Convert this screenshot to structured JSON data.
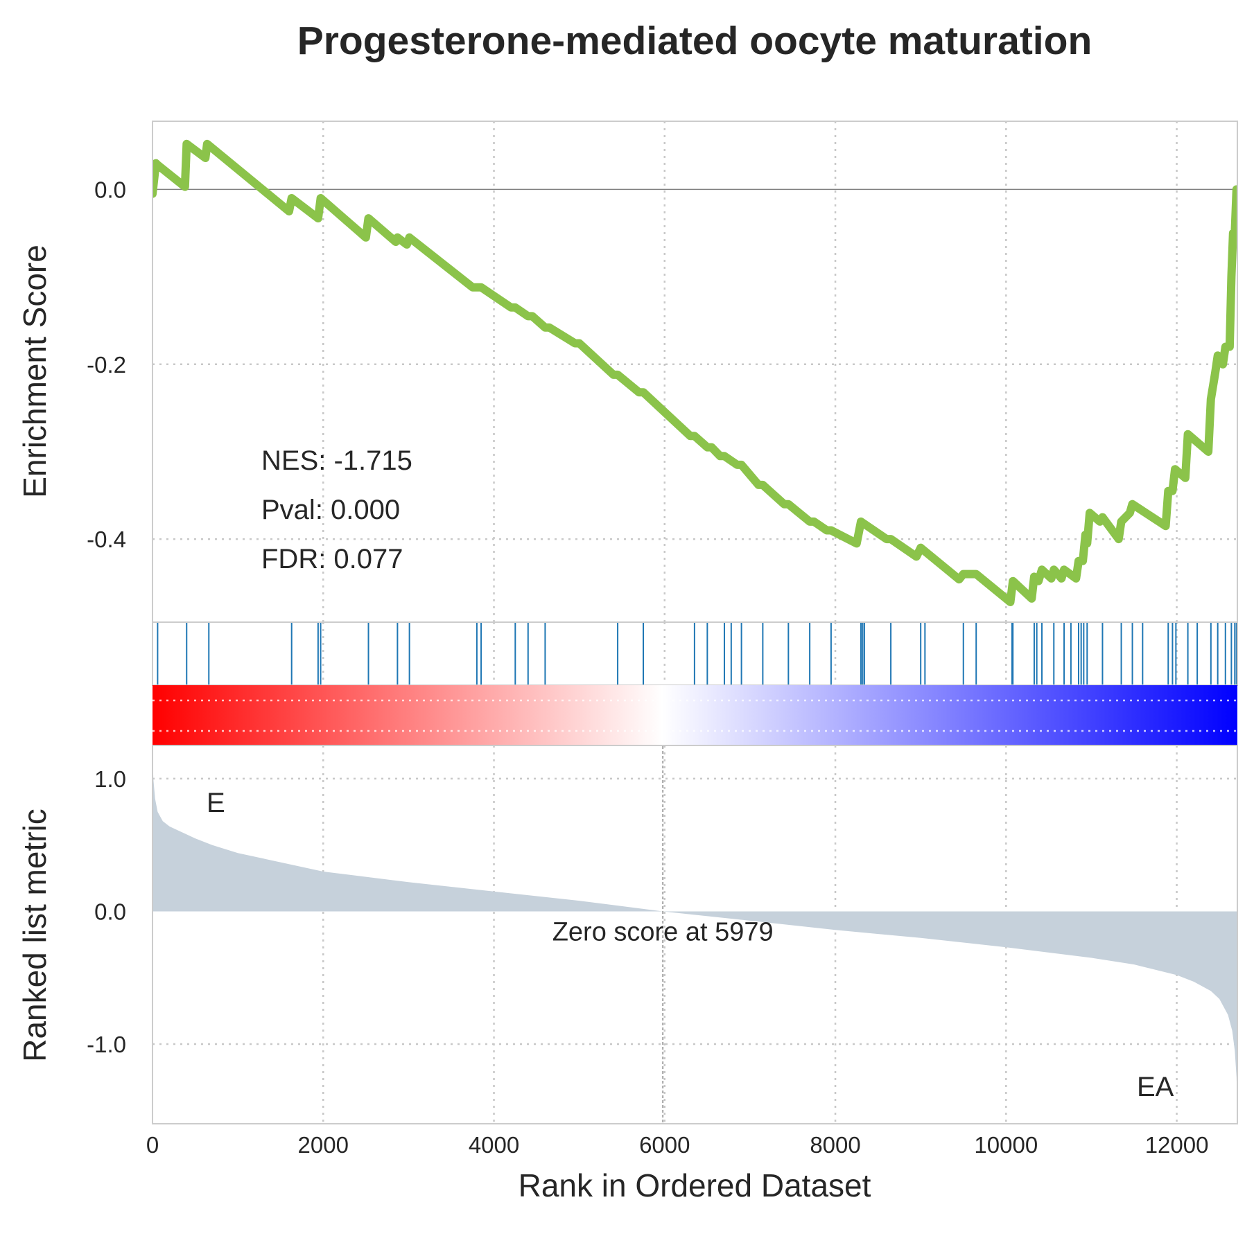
{
  "chart_data": {
    "type": "line",
    "title": "Progesterone-mediated oocyte maturation",
    "xlabel": "Rank in Ordered Dataset",
    "x_ticks": [
      0,
      2000,
      4000,
      6000,
      8000,
      10000,
      12000
    ],
    "xlim": [
      0,
      12710
    ],
    "enrichment": {
      "ylabel": "Enrichment Score",
      "ylim": [
        -0.495,
        0.078
      ],
      "y_ticks": [
        0.0,
        -0.2,
        -0.4
      ],
      "y_tick_labels": [
        "0.0",
        "-0.2",
        "-0.4"
      ],
      "line_color": "#8bc34a",
      "x": [
        0,
        40,
        60,
        380,
        400,
        620,
        640,
        1600,
        1630,
        1940,
        1970,
        2500,
        2530,
        2850,
        2870,
        2980,
        3010,
        3750,
        3800,
        3850,
        4200,
        4250,
        4400,
        4450,
        4600,
        4650,
        4950,
        5000,
        5400,
        5450,
        5700,
        5750,
        6300,
        6350,
        6500,
        6550,
        6650,
        6700,
        6850,
        6900,
        7100,
        7150,
        7400,
        7450,
        7700,
        7750,
        7900,
        7950,
        8250,
        8300,
        8600,
        8650,
        8950,
        9000,
        9450,
        9500,
        9600,
        9650,
        10050,
        10080,
        10300,
        10330,
        10380,
        10420,
        10530,
        10560,
        10650,
        10680,
        10820,
        10850,
        10900,
        10930,
        10950,
        10980,
        11100,
        11130,
        11320,
        11350,
        11450,
        11480,
        11870,
        11900,
        11950,
        11980,
        12100,
        12130,
        12370,
        12400,
        12450,
        12480,
        12540,
        12570,
        12620,
        12640,
        12660,
        12680,
        12700
      ],
      "y": [
        -0.005,
        0.03,
        0.028,
        0.003,
        0.052,
        0.036,
        0.052,
        -0.025,
        -0.01,
        -0.033,
        -0.01,
        -0.055,
        -0.033,
        -0.06,
        -0.055,
        -0.063,
        -0.055,
        -0.112,
        -0.112,
        -0.112,
        -0.135,
        -0.135,
        -0.145,
        -0.145,
        -0.158,
        -0.158,
        -0.176,
        -0.176,
        -0.212,
        -0.212,
        -0.232,
        -0.232,
        -0.282,
        -0.282,
        -0.295,
        -0.295,
        -0.305,
        -0.305,
        -0.315,
        -0.315,
        -0.338,
        -0.338,
        -0.36,
        -0.36,
        -0.38,
        -0.38,
        -0.39,
        -0.39,
        -0.405,
        -0.38,
        -0.4,
        -0.4,
        -0.42,
        -0.41,
        -0.446,
        -0.44,
        -0.44,
        -0.44,
        -0.472,
        -0.448,
        -0.468,
        -0.443,
        -0.448,
        -0.435,
        -0.445,
        -0.435,
        -0.445,
        -0.435,
        -0.445,
        -0.425,
        -0.425,
        -0.395,
        -0.405,
        -0.37,
        -0.38,
        -0.375,
        -0.4,
        -0.38,
        -0.37,
        -0.36,
        -0.385,
        -0.345,
        -0.345,
        -0.32,
        -0.33,
        -0.28,
        -0.3,
        -0.24,
        -0.21,
        -0.19,
        -0.2,
        -0.18,
        -0.18,
        -0.1,
        -0.05,
        -0.05,
        0.0
      ],
      "annotations": [
        "NES: -1.715",
        "Pval: 0.000",
        "FDR: 0.077"
      ]
    },
    "hits": {
      "color": "#1f77b4",
      "ranks": [
        60,
        400,
        660,
        1630,
        1940,
        1970,
        2530,
        2870,
        3010,
        3800,
        3850,
        4250,
        4400,
        4600,
        5450,
        5750,
        6350,
        6500,
        6700,
        6780,
        6900,
        7150,
        7450,
        7700,
        7950,
        8300,
        8320,
        8340,
        8650,
        9000,
        9050,
        9500,
        9650,
        10070,
        10080,
        10330,
        10360,
        10420,
        10560,
        10680,
        10760,
        10850,
        10880,
        10910,
        10950,
        11130,
        11350,
        11480,
        11600,
        11900,
        11950,
        11990,
        12130,
        12240,
        12400,
        12480,
        12570,
        12640,
        12680,
        12700
      ]
    },
    "ranked_metric": {
      "ylabel": "Ranked list metric",
      "ylim": [
        -1.6,
        1.25
      ],
      "y_ticks": [
        1.0,
        0.0,
        -1.0
      ],
      "y_tick_labels": [
        "1.0",
        "0.0",
        "-1.0"
      ],
      "fill_color": "#c6d1db",
      "x": [
        0,
        10,
        30,
        60,
        120,
        200,
        300,
        400,
        500,
        700,
        1000,
        1500,
        2000,
        3000,
        4000,
        5000,
        5979,
        7000,
        8000,
        9000,
        10000,
        11000,
        11500,
        12000,
        12200,
        12400,
        12500,
        12600,
        12650,
        12680,
        12700,
        12710
      ],
      "y": [
        1.2,
        1.0,
        0.85,
        0.75,
        0.68,
        0.64,
        0.61,
        0.58,
        0.55,
        0.5,
        0.44,
        0.37,
        0.3,
        0.22,
        0.15,
        0.08,
        0.0,
        -0.07,
        -0.14,
        -0.2,
        -0.27,
        -0.35,
        -0.4,
        -0.48,
        -0.53,
        -0.6,
        -0.66,
        -0.78,
        -0.9,
        -1.05,
        -1.25,
        -1.5
      ],
      "zero_cross": 5979,
      "zero_label": "Zero score at 5979",
      "pos_label": "E",
      "neg_label": "EA",
      "pos_color": "#e41a1c",
      "neg_color": "#1111ee"
    },
    "colorbar": {
      "colors": [
        "#ff0000",
        "#ffffff",
        "#0000ff"
      ],
      "center_rank": 5979
    },
    "x_tick_labels": [
      "0",
      "2000",
      "4000",
      "6000",
      "8000",
      "10000",
      "12000"
    ]
  }
}
